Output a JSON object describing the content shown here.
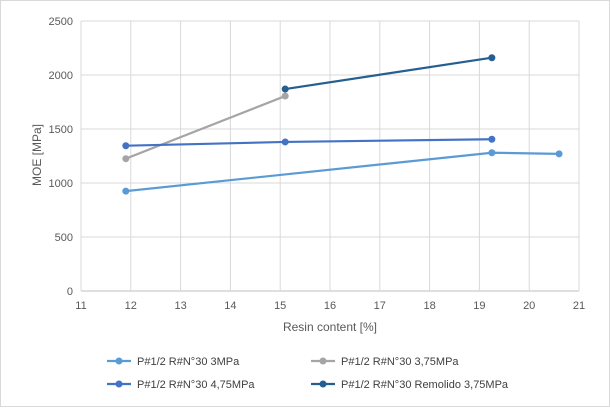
{
  "chart_data": {
    "type": "line",
    "title": "",
    "xlabel": "Resin content [%]",
    "ylabel": "MOE [MPa]",
    "xlim": [
      11,
      21
    ],
    "ylim": [
      0,
      2500
    ],
    "xticks": [
      "11",
      "12",
      "13",
      "14",
      "15",
      "16",
      "17",
      "18",
      "19",
      "20",
      "21"
    ],
    "yticks": [
      "0",
      "500",
      "1000",
      "1500",
      "2000",
      "2500"
    ],
    "grid": true,
    "legend_position": "bottom",
    "series": [
      {
        "name": "P#1/2 R#N°30 3MPa",
        "color": "#5b9bd5",
        "points": [
          [
            11.9,
            925
          ],
          [
            19.25,
            1280
          ],
          [
            20.6,
            1270
          ]
        ]
      },
      {
        "name": "P#1/2 R#N°30 3,75MPa",
        "color": "#a5a5a5",
        "points": [
          [
            11.9,
            1225
          ],
          [
            15.1,
            1805
          ]
        ]
      },
      {
        "name": "P#1/2 R#N°30 4,75MPa",
        "color": "#4472c4",
        "points": [
          [
            11.9,
            1345
          ],
          [
            15.1,
            1380
          ],
          [
            19.25,
            1405
          ]
        ]
      },
      {
        "name": "P#1/2 R#N°30 Remolido 3,75MPa",
        "color": "#255e91",
        "points": [
          [
            15.1,
            1870
          ],
          [
            19.25,
            2160
          ]
        ]
      }
    ]
  }
}
